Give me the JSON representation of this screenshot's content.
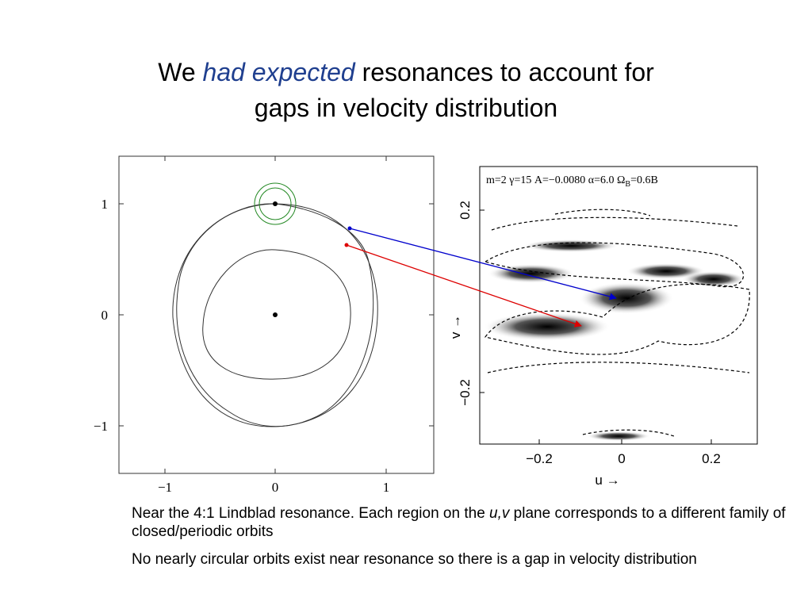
{
  "title": {
    "part1": "We ",
    "emphasis": "had expected",
    "part2": " resonances to account for",
    "line2": "gaps in velocity distribution"
  },
  "left_figure": {
    "xticks": [
      "−1",
      "0",
      "1"
    ],
    "yticks": [
      "1",
      "0",
      "−1"
    ]
  },
  "right_figure": {
    "header_main": "m=2  γ=15  A=−0.0080  α=6.0  Ω",
    "header_sub": "B",
    "header_tail": "=0.6B",
    "xticks": [
      "−0.2",
      "0",
      "0.2"
    ],
    "yticks": [
      "0.2",
      "−0.2"
    ],
    "ylabel": "v →",
    "xlabel": "u →"
  },
  "notes": [
    {
      "part1": "Near the 4:1 Lindblad resonance. Each region on the ",
      "italic": "u,v",
      "part2": " plane corresponds to a different family of closed/periodic orbits"
    },
    {
      "text": "No nearly circular orbits exist near resonance so there is a gap in velocity distribution"
    }
  ]
}
